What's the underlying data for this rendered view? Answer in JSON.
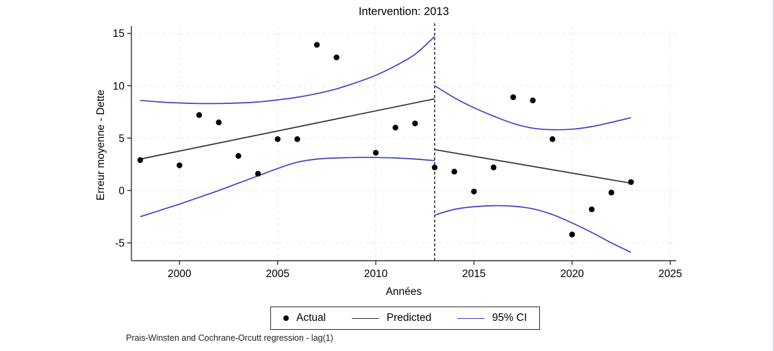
{
  "figure": {
    "title": "Intervention: 2013",
    "xlabel": "Années",
    "ylabel": "Erreur moyenne - Dette",
    "note": "Prais-Winsten and Cochrane-Orcutt regression - lag(1)",
    "legend": {
      "actual": "Actual",
      "predicted": "Predicted",
      "ci": "95% CI"
    },
    "colors": {
      "actual": "#000000",
      "predicted": "#2e2e2e",
      "ci": "#4040c6",
      "grid": "#e8e8e8",
      "axis": "#303030",
      "intervention_line": "#000000"
    }
  },
  "chart_data": {
    "type": "scatter",
    "title": "Intervention: 2013",
    "xlabel": "Années",
    "ylabel": "Erreur moyenne - Dette",
    "note": "Prais-Winsten and Cochrane-Orcutt regression - lag(1)",
    "xlim": [
      1997.55,
      2025.3
    ],
    "ylim": [
      -6.7,
      15.7
    ],
    "xticks": [
      2000,
      2005,
      2010,
      2015,
      2020,
      2025
    ],
    "yticks": [
      -5,
      0,
      5,
      10,
      15
    ],
    "grid": true,
    "legend_position": "bottom-center",
    "intervention": {
      "x": 2013,
      "label": "Intervention: 2013"
    },
    "series": [
      {
        "name": "actual",
        "label": "Actual",
        "type": "scatter",
        "color": "#000000",
        "points": [
          [
            1998,
            2.9
          ],
          [
            2000,
            2.4
          ],
          [
            2001,
            7.2
          ],
          [
            2002,
            6.5
          ],
          [
            2003,
            3.3
          ],
          [
            2004,
            1.6
          ],
          [
            2005,
            4.9
          ],
          [
            2006,
            4.9
          ],
          [
            2007,
            13.9
          ],
          [
            2008,
            12.7
          ],
          [
            2010,
            3.6
          ],
          [
            2011,
            6.0
          ],
          [
            2012,
            6.4
          ],
          [
            2013,
            2.2
          ],
          [
            2014,
            1.8
          ],
          [
            2015,
            -0.1
          ],
          [
            2016,
            2.2
          ],
          [
            2017,
            8.9
          ],
          [
            2018,
            8.6
          ],
          [
            2019,
            4.9
          ],
          [
            2020,
            -4.2
          ],
          [
            2021,
            -1.8
          ],
          [
            2022,
            -0.2
          ],
          [
            2023,
            0.8
          ]
        ]
      },
      {
        "name": "predicted-pre",
        "label": "Predicted",
        "type": "line",
        "smooth": false,
        "color": "#2e2e2e",
        "points": [
          [
            1998,
            3.0
          ],
          [
            2013,
            8.75
          ]
        ]
      },
      {
        "name": "predicted-post",
        "label": "Predicted",
        "type": "line",
        "smooth": false,
        "color": "#2e2e2e",
        "points": [
          [
            2013,
            3.9
          ],
          [
            2023,
            0.7
          ]
        ]
      },
      {
        "name": "ci-upper-pre",
        "label": "95% CI",
        "type": "line",
        "smooth": true,
        "color": "#4040c6",
        "points": [
          [
            1998,
            8.6
          ],
          [
            1999,
            8.45
          ],
          [
            2000,
            8.35
          ],
          [
            2001,
            8.3
          ],
          [
            2002,
            8.3
          ],
          [
            2003,
            8.35
          ],
          [
            2004,
            8.45
          ],
          [
            2005,
            8.65
          ],
          [
            2006,
            8.9
          ],
          [
            2007,
            9.25
          ],
          [
            2008,
            9.7
          ],
          [
            2009,
            10.3
          ],
          [
            2010,
            11.0
          ],
          [
            2011,
            11.9
          ],
          [
            2012,
            13.0
          ],
          [
            2013,
            14.7
          ]
        ]
      },
      {
        "name": "ci-lower-pre",
        "label": "95% CI",
        "type": "line",
        "smooth": true,
        "color": "#4040c6",
        "points": [
          [
            1998,
            -2.5
          ],
          [
            1999,
            -1.9
          ],
          [
            2000,
            -1.3
          ],
          [
            2001,
            -0.65
          ],
          [
            2002,
            0.0
          ],
          [
            2003,
            0.7
          ],
          [
            2004,
            1.4
          ],
          [
            2005,
            2.1
          ],
          [
            2006,
            2.7
          ],
          [
            2007,
            3.0
          ],
          [
            2008,
            3.1
          ],
          [
            2009,
            3.15
          ],
          [
            2010,
            3.15
          ],
          [
            2011,
            3.1
          ],
          [
            2012,
            3.0
          ],
          [
            2013,
            2.85
          ]
        ]
      },
      {
        "name": "ci-upper-post",
        "label": "95% CI",
        "type": "line",
        "smooth": true,
        "color": "#4040c6",
        "points": [
          [
            2013,
            10.0
          ],
          [
            2014,
            8.85
          ],
          [
            2015,
            7.9
          ],
          [
            2016,
            7.1
          ],
          [
            2017,
            6.4
          ],
          [
            2018,
            5.95
          ],
          [
            2019,
            5.8
          ],
          [
            2020,
            5.85
          ],
          [
            2021,
            6.1
          ],
          [
            2022,
            6.5
          ],
          [
            2023,
            6.95
          ]
        ]
      },
      {
        "name": "ci-lower-post",
        "label": "95% CI",
        "type": "line",
        "smooth": true,
        "color": "#4040c6",
        "points": [
          [
            2013,
            -2.35
          ],
          [
            2014,
            -1.8
          ],
          [
            2015,
            -1.55
          ],
          [
            2016,
            -1.45
          ],
          [
            2017,
            -1.5
          ],
          [
            2018,
            -1.75
          ],
          [
            2019,
            -2.3
          ],
          [
            2020,
            -3.1
          ],
          [
            2021,
            -4.0
          ],
          [
            2022,
            -5.0
          ],
          [
            2023,
            -5.9
          ]
        ]
      }
    ]
  }
}
